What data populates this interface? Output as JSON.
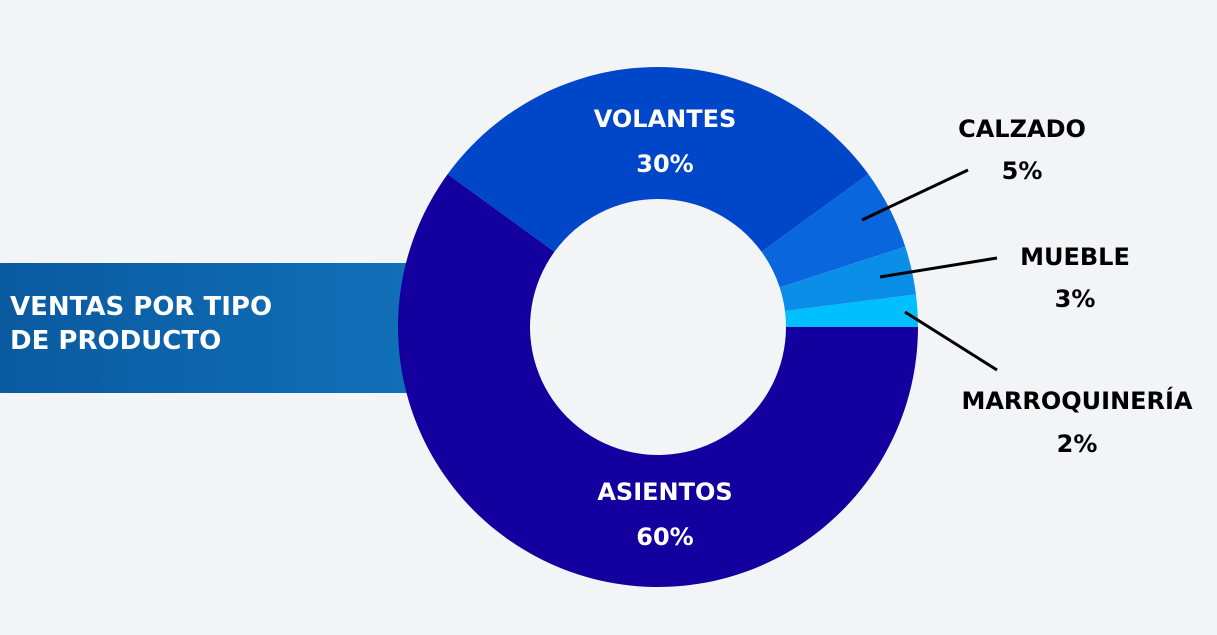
{
  "chart_data": {
    "type": "donut",
    "title": "VENTAS POR TIPO DE PRODUCTO",
    "categories": [
      "ASIENTOS",
      "VOLANTES",
      "CALZADO",
      "MUEBLE",
      "MARROQUINERÍA"
    ],
    "values": [
      60,
      30,
      5,
      3,
      2
    ],
    "value_labels": [
      "60%",
      "30%",
      "5%",
      "3%",
      "2%"
    ],
    "colors": [
      "#14009e",
      "#0046c8",
      "#0a66dc",
      "#0a8ee8",
      "#00bfff"
    ]
  }
}
